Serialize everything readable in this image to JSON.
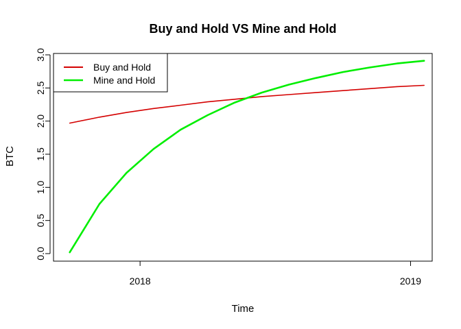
{
  "chart_data": {
    "type": "line",
    "title": "Buy and Hold VS Mine and Hold",
    "xlabel": "Time",
    "ylabel": "BTC",
    "x_ticks": [
      "2018",
      "2019"
    ],
    "y_ticks": [
      "0.0",
      "0.5",
      "1.0",
      "1.5",
      "2.0",
      "2.5",
      "3.0"
    ],
    "xlim": [
      2017.68,
      2019.08
    ],
    "ylim": [
      0,
      3.0
    ],
    "grid": false,
    "legend_position": "top-left",
    "series": [
      {
        "name": "Buy and Hold",
        "color": "#d40000",
        "x": [
          2017.74,
          2017.85,
          2017.95,
          2018.05,
          2018.15,
          2018.25,
          2018.35,
          2018.45,
          2018.55,
          2018.65,
          2018.75,
          2018.85,
          2018.95,
          2019.05
        ],
        "y": [
          1.97,
          2.06,
          2.13,
          2.19,
          2.24,
          2.29,
          2.33,
          2.37,
          2.4,
          2.43,
          2.46,
          2.49,
          2.52,
          2.54
        ]
      },
      {
        "name": "Mine and Hold",
        "color": "#00ee00",
        "x": [
          2017.74,
          2017.85,
          2017.95,
          2018.05,
          2018.15,
          2018.25,
          2018.35,
          2018.45,
          2018.55,
          2018.65,
          2018.75,
          2018.85,
          2018.95,
          2019.05
        ],
        "y": [
          0.02,
          0.75,
          1.22,
          1.58,
          1.87,
          2.09,
          2.28,
          2.43,
          2.55,
          2.65,
          2.74,
          2.81,
          2.87,
          2.91
        ]
      }
    ]
  }
}
